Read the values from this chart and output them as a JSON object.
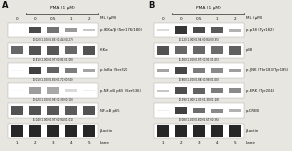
{
  "panel_A_label": "A",
  "panel_B_label": "B",
  "pma_label": "PMA (1 μM)",
  "ml_label": "ML (μM)",
  "lane_numbers": [
    "1",
    "2",
    "3",
    "4",
    "5"
  ],
  "lane_header": [
    "0",
    "0",
    "0.5",
    "1",
    "2"
  ],
  "lane_label": "Lane",
  "panel_A_bands": [
    {
      "label": "p-IKKα/β (Ser176/180)",
      "values_text": "(0.02)(1.00)(0.83)(0.44)(0.27)",
      "band_intensities": [
        0.08,
        0.9,
        0.7,
        0.5,
        0.28
      ],
      "band_type": "thin"
    },
    {
      "label": "IKKα",
      "values_text": "(0.81)(1.00)(0.97)(0.81)(1.00)",
      "band_intensities": [
        0.88,
        1.0,
        0.97,
        0.88,
        1.0
      ],
      "band_type": "thick"
    },
    {
      "label": "p-IκBα (Ser32)",
      "values_text": "(0.01)(1.00)(0.85)(0.72)(0.50)",
      "band_intensities": [
        0.05,
        0.95,
        0.78,
        0.65,
        0.45
      ],
      "band_type": "thin"
    },
    {
      "label": "p-NF-κB p65 (Ser536)",
      "values_text": "(0.02)(1.00)(0.99)(0.30)(0.10)",
      "band_intensities": [
        0.05,
        0.92,
        0.82,
        0.35,
        0.15
      ],
      "band_type": "thin_faint"
    },
    {
      "label": "NF-κB p65",
      "values_text": "(1.04)(1.00)(0.97)(0.94)(1.01)",
      "band_intensities": [
        1.0,
        1.0,
        0.97,
        0.95,
        1.0
      ],
      "band_type": "thick"
    },
    {
      "label": "β-actin",
      "values_text": "",
      "band_intensities": [
        1.0,
        1.0,
        1.0,
        1.0,
        1.0
      ],
      "band_type": "thick_black"
    }
  ],
  "panel_B_bands": [
    {
      "label": "p-p38 (Tyr182)",
      "values_text": "(0.12)(1.00)(0.94)(0.84)(0.35)",
      "band_intensities": [
        0.18,
        1.0,
        0.9,
        0.82,
        0.38
      ],
      "band_type": "thin"
    },
    {
      "label": "p38",
      "values_text": "(1.50)(1.00)(0.97)(0.91)(1.05)",
      "band_intensities": [
        1.0,
        0.88,
        0.88,
        0.85,
        0.92
      ],
      "band_type": "thick"
    },
    {
      "label": "p-JNK (Thr183/Tyr185)",
      "values_text": "(0.80)(1.00)(0.98)(0.98)(1.00)",
      "band_intensities": [
        0.45,
        0.92,
        0.65,
        0.58,
        0.48
      ],
      "band_type": "thin"
    },
    {
      "label": "p-ERK (Tyr204)",
      "values_text": "(0.39)(1.00)(1.03)(1.30)(1.28)",
      "band_intensities": [
        0.28,
        0.88,
        0.78,
        0.65,
        0.58
      ],
      "band_type": "thin"
    },
    {
      "label": "p-CREB",
      "values_text": "(0.08)(1.00)(0.80)(0.67)(0.36)",
      "band_intensities": [
        0.08,
        0.95,
        0.72,
        0.58,
        0.38
      ],
      "band_type": "thin"
    },
    {
      "label": "β-actin",
      "values_text": "",
      "band_intensities": [
        1.0,
        1.0,
        1.0,
        1.0,
        1.0
      ],
      "band_type": "thick_black"
    }
  ],
  "figure_bg": "#e8e6e0",
  "band_color_dark": "#1a1a1a",
  "band_color_medium": "#3a3a3a",
  "band_color_faint": "#7a7a7a",
  "text_color": "#111111"
}
